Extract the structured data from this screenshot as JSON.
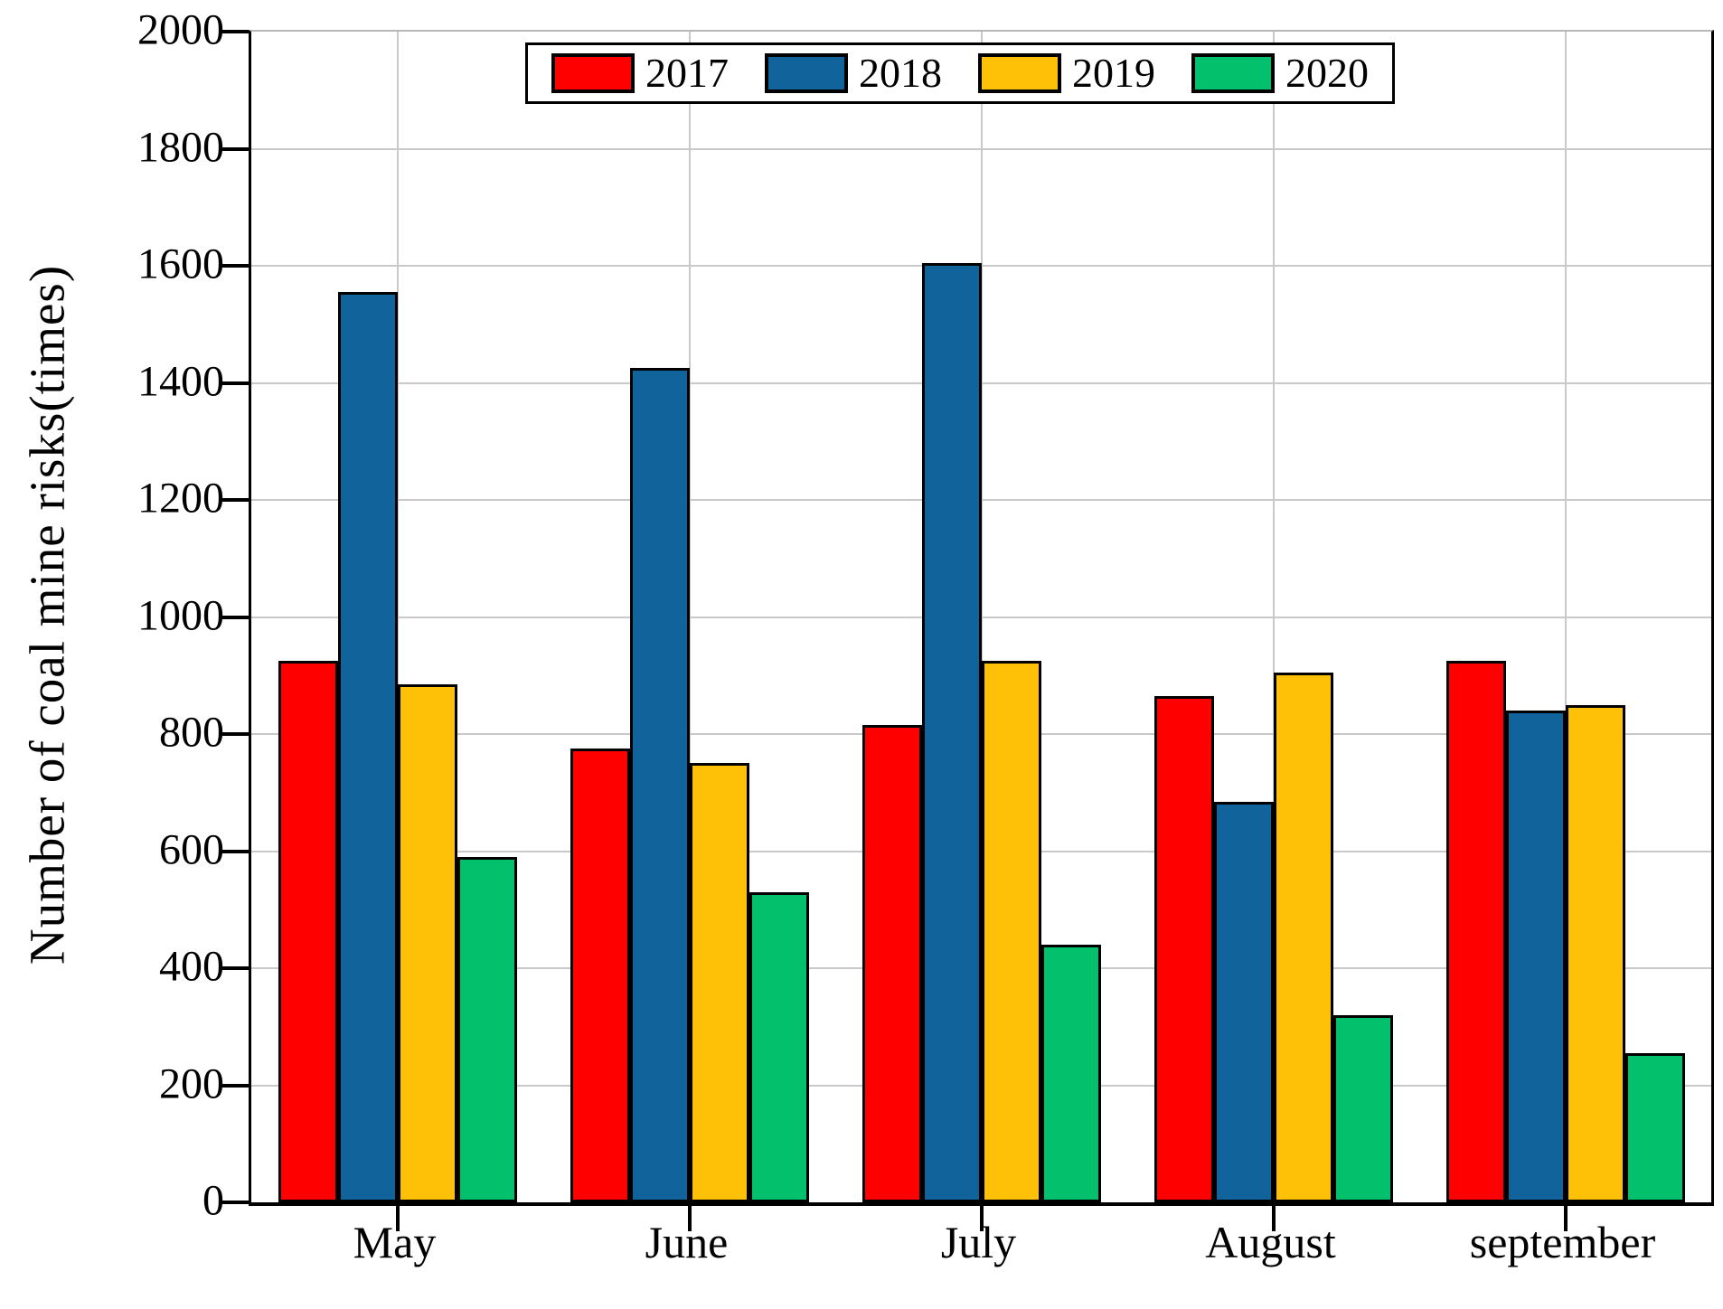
{
  "figure": {
    "background": "#ffffff"
  },
  "chart_data": {
    "type": "bar",
    "title": "",
    "xlabel": "",
    "ylabel": "Number of coal mine risks(times)",
    "ylim": [
      0,
      2000
    ],
    "ytick_step": 200,
    "ytick_labels": [
      "0",
      "200",
      "400",
      "600",
      "800",
      "1000",
      "1200",
      "1400",
      "1600",
      "1800",
      "2000"
    ],
    "grid": true,
    "gridline_color": "#c9c9c9",
    "legend_position": "top-center",
    "categories": [
      "May",
      "June",
      "July",
      "August",
      "september"
    ],
    "series": [
      {
        "name": "2017",
        "color": "#fe0000",
        "values": [
          925,
          775,
          815,
          865,
          925
        ]
      },
      {
        "name": "2018",
        "color": "#11639b",
        "values": [
          1555,
          1425,
          1605,
          685,
          840
        ]
      },
      {
        "name": "2019",
        "color": "#ffc107",
        "values": [
          885,
          750,
          925,
          905,
          850
        ]
      },
      {
        "name": "2020",
        "color": "#02c06c",
        "values": [
          590,
          530,
          440,
          320,
          255
        ]
      }
    ]
  }
}
